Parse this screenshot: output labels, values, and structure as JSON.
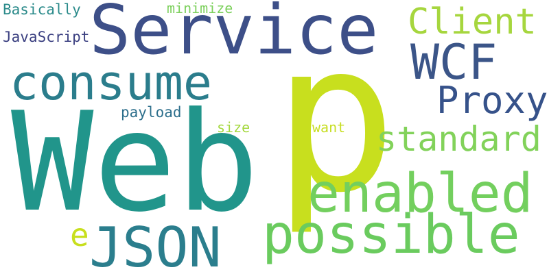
{
  "words": {
    "service": {
      "text": "Service",
      "color": "#3d4f88"
    },
    "p": {
      "text": "p",
      "color": "#c8df1e"
    },
    "web": {
      "text": "Web",
      "color": "#21958b"
    },
    "consume": {
      "text": "consume",
      "color": "#2b7d8c"
    },
    "wcf": {
      "text": "WCF",
      "color": "#3b5588"
    },
    "client": {
      "text": "Client",
      "color": "#a6d63e"
    },
    "proxy": {
      "text": "Proxy",
      "color": "#36528a"
    },
    "standard": {
      "text": "standard",
      "color": "#82d25a"
    },
    "enabled": {
      "text": "enabled",
      "color": "#73cf5e"
    },
    "possible": {
      "text": "possible",
      "color": "#6acb5e"
    },
    "json": {
      "text": "JSON",
      "color": "#2b7e8d"
    },
    "e": {
      "text": "e",
      "color": "#c8df1e"
    },
    "basically": {
      "text": "Basically",
      "color": "#2a8a8a"
    },
    "javascript": {
      "text": "JavaScript",
      "color": "#3a3f80"
    },
    "minimize": {
      "text": "minimize",
      "color": "#7cd05c"
    },
    "payload": {
      "text": "payload",
      "color": "#2d6f8c"
    },
    "size": {
      "text": "size",
      "color": "#a4d83e"
    },
    "want": {
      "text": "want",
      "color": "#c7de24"
    }
  }
}
